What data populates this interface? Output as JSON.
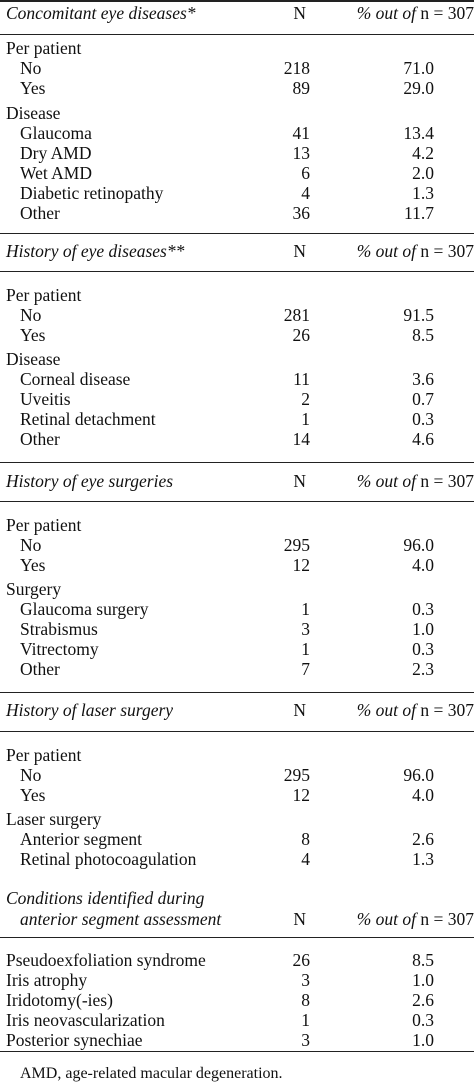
{
  "header_pct_label": "% out of",
  "header_n_value": "n = 307",
  "header_n_col": "N",
  "sections": [
    {
      "title": "Concomitant eye diseases*",
      "groups": [
        {
          "label": "Per patient",
          "rows": [
            {
              "label": "No",
              "n": "218",
              "pct": "71.0"
            },
            {
              "label": "Yes",
              "n": "89",
              "pct": "29.0"
            }
          ]
        },
        {
          "label": "Disease",
          "rows": [
            {
              "label": "Glaucoma",
              "n": "41",
              "pct": "13.4"
            },
            {
              "label": "Dry AMD",
              "n": "13",
              "pct": "4.2"
            },
            {
              "label": "Wet AMD",
              "n": "6",
              "pct": "2.0"
            },
            {
              "label": "Diabetic retinopathy",
              "n": "4",
              "pct": "1.3"
            },
            {
              "label": "Other",
              "n": "36",
              "pct": "11.7"
            }
          ]
        }
      ]
    },
    {
      "title": "History of eye diseases**",
      "groups": [
        {
          "label": "Per patient",
          "rows": [
            {
              "label": "No",
              "n": "281",
              "pct": "91.5"
            },
            {
              "label": "Yes",
              "n": "26",
              "pct": "8.5"
            }
          ]
        },
        {
          "label": "Disease",
          "rows": [
            {
              "label": "Corneal disease",
              "n": "11",
              "pct": "3.6"
            },
            {
              "label": "Uveitis",
              "n": "2",
              "pct": "0.7"
            },
            {
              "label": "Retinal detachment",
              "n": "1",
              "pct": "0.3"
            },
            {
              "label": "Other",
              "n": "14",
              "pct": "4.6"
            }
          ]
        }
      ]
    },
    {
      "title": "History of eye surgeries",
      "groups": [
        {
          "label": "Per patient",
          "rows": [
            {
              "label": "No",
              "n": "295",
              "pct": "96.0"
            },
            {
              "label": "Yes",
              "n": "12",
              "pct": "4.0"
            }
          ]
        },
        {
          "label": "Surgery",
          "rows": [
            {
              "label": "Glaucoma surgery",
              "n": "1",
              "pct": "0.3"
            },
            {
              "label": "Strabismus",
              "n": "3",
              "pct": "1.0"
            },
            {
              "label": "Vitrectomy",
              "n": "1",
              "pct": "0.3"
            },
            {
              "label": "Other",
              "n": "7",
              "pct": "2.3"
            }
          ]
        }
      ]
    },
    {
      "title": "History of laser surgery",
      "groups": [
        {
          "label": "Per patient",
          "rows": [
            {
              "label": "No",
              "n": "295",
              "pct": "96.0"
            },
            {
              "label": "Yes",
              "n": "12",
              "pct": "4.0"
            }
          ]
        },
        {
          "label": "Laser surgery",
          "rows": [
            {
              "label": "Anterior segment",
              "n": "8",
              "pct": "2.6"
            },
            {
              "label": "Retinal photocoagulation",
              "n": "4",
              "pct": "1.3"
            }
          ]
        }
      ]
    },
    {
      "title": "Conditions identified during",
      "title2": "anterior segment assessment",
      "groups": [
        {
          "label": "",
          "rows": [
            {
              "label": "Pseudoexfoliation syndrome",
              "n": "26",
              "pct": "8.5"
            },
            {
              "label": "Iris atrophy",
              "n": "3",
              "pct": "1.0"
            },
            {
              "label": "Iridotomy(-ies)",
              "n": "8",
              "pct": "2.6"
            },
            {
              "label": "Iris neovascularization",
              "n": "1",
              "pct": "0.3"
            },
            {
              "label": "Posterior synechiae",
              "n": "3",
              "pct": "1.0"
            }
          ]
        }
      ]
    }
  ],
  "footnote": "AMD, age-related macular degeneration."
}
